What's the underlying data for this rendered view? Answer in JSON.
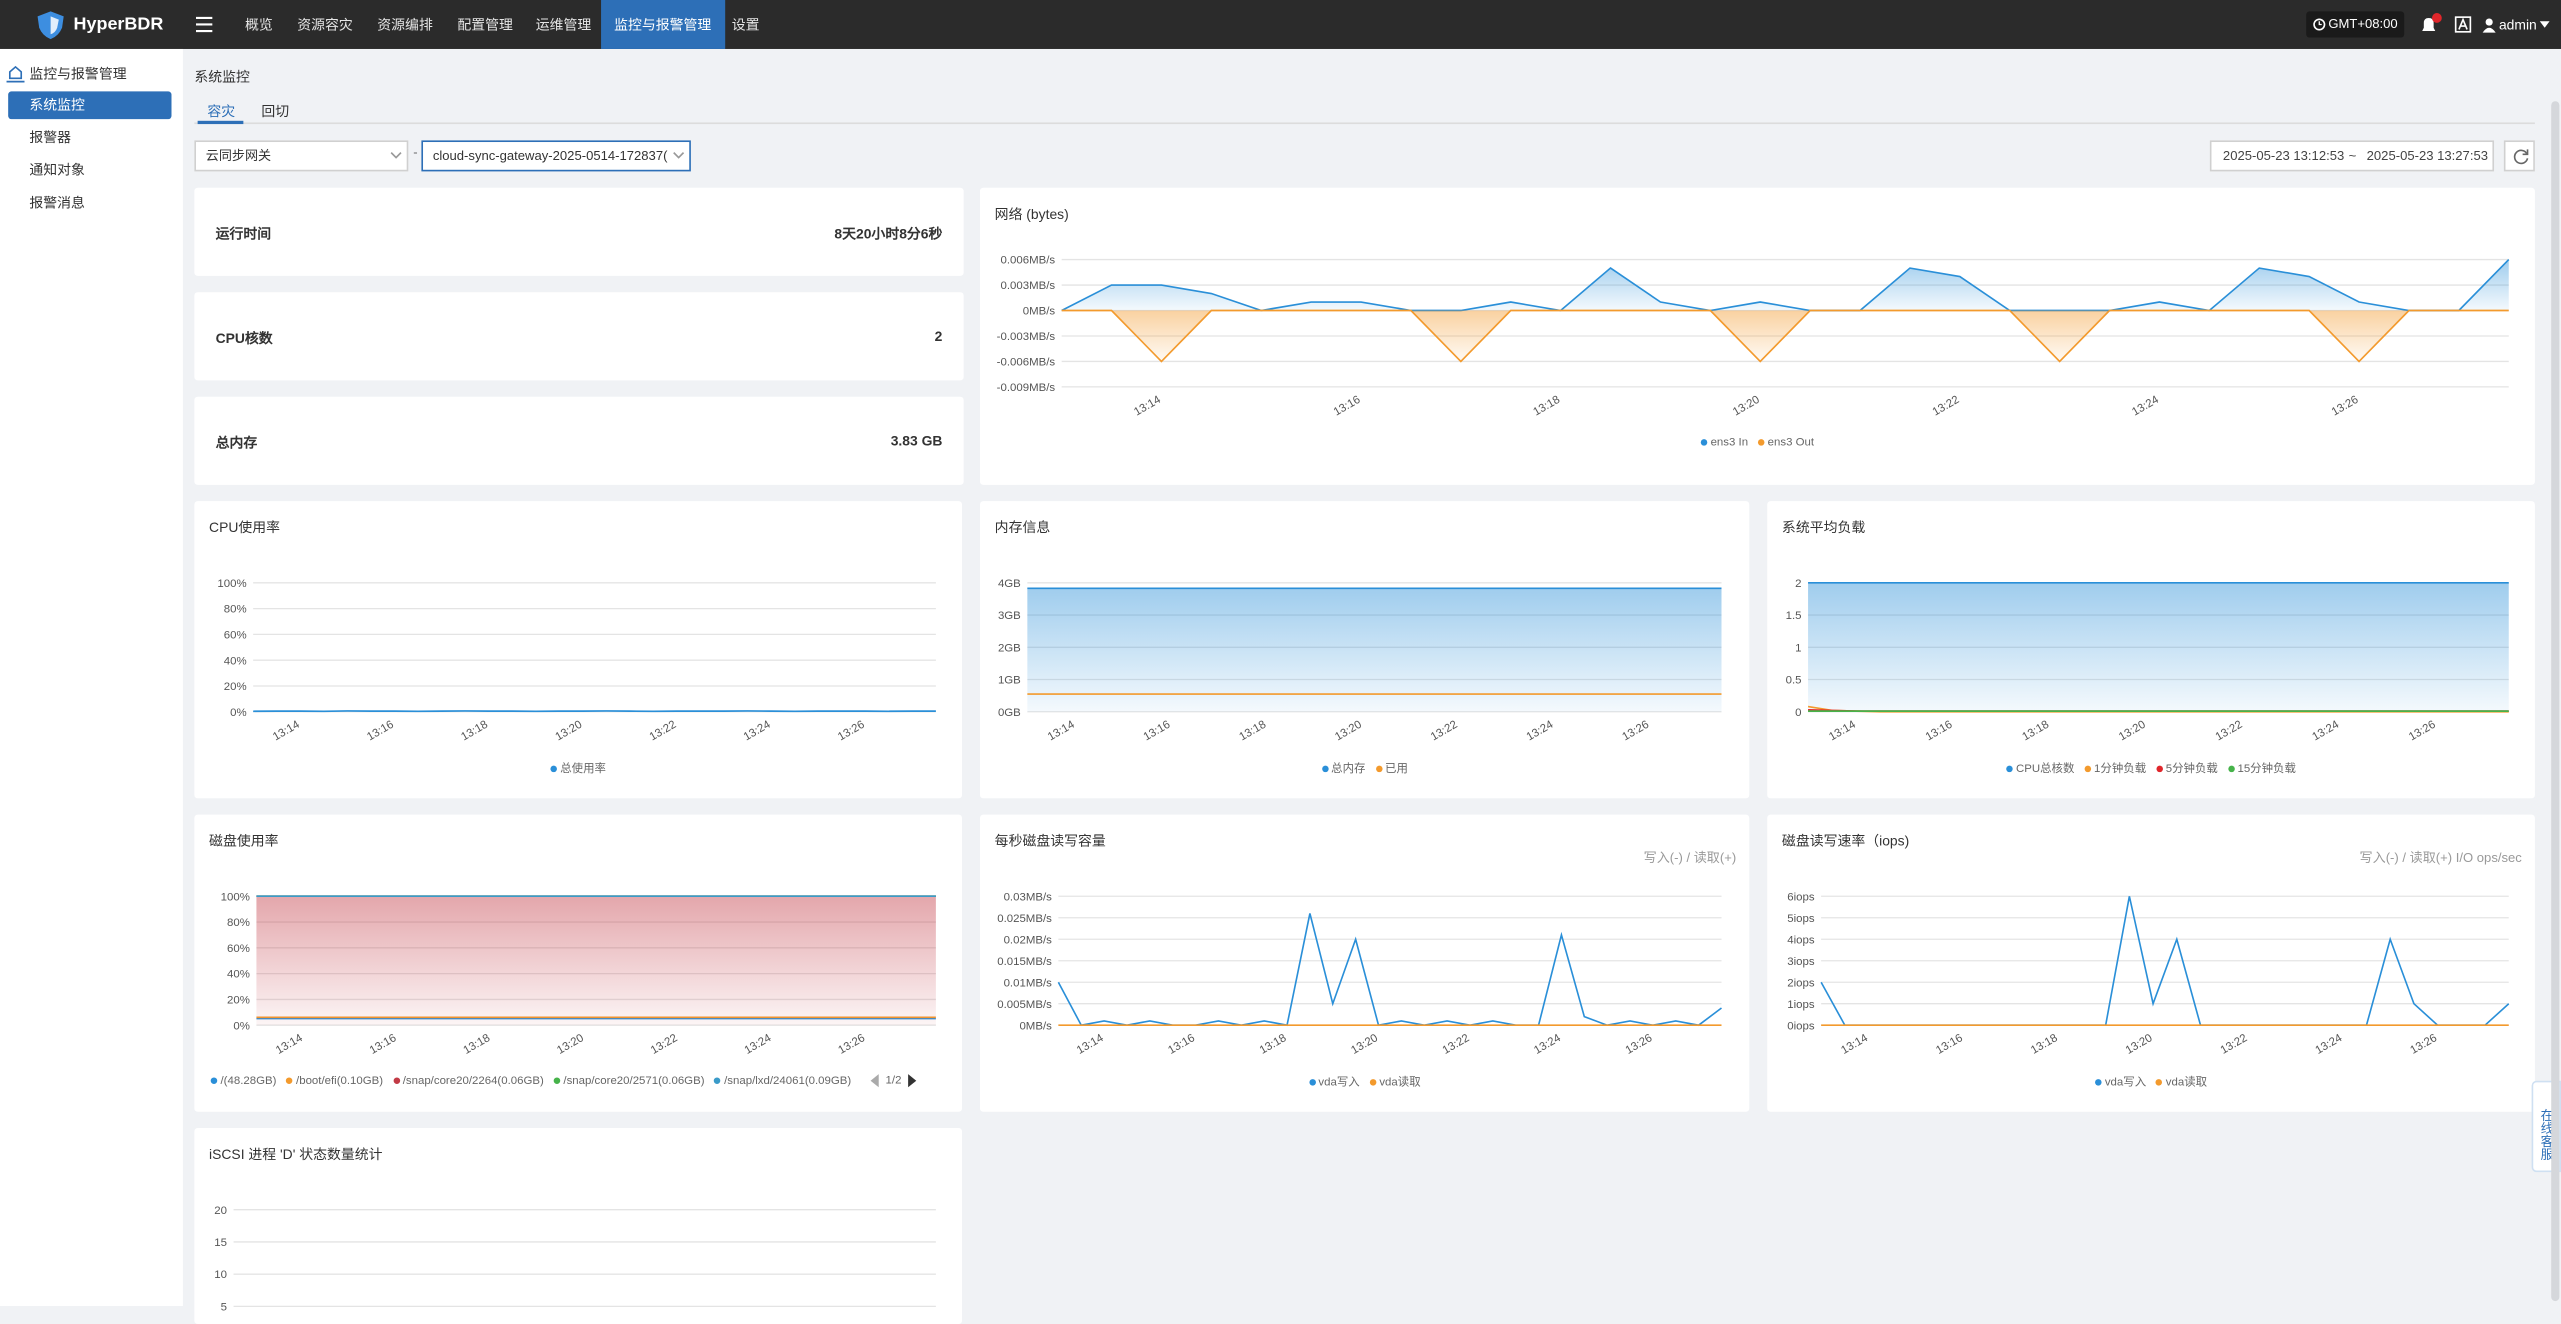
{
  "brand": "HyperBDR",
  "nav": [
    "概览",
    "资源容灾",
    "资源编排",
    "配置管理",
    "运维管理",
    "监控与报警管理",
    "设置"
  ],
  "nav_active": 5,
  "topbar": {
    "timezone": "GMT+08:00",
    "user": "admin"
  },
  "sidebar": {
    "group": "监控与报警管理",
    "items": [
      "系统监控",
      "报警器",
      "通知对象",
      "报警消息"
    ],
    "active": 0
  },
  "page": {
    "title": "系统监控",
    "tabs": [
      "容灾",
      "回切"
    ],
    "active_tab": 0,
    "filters": [
      "云同步网关",
      "cloud-sync-gateway-2025-0514-172837("
    ],
    "date_range": [
      "2025-05-23 13:12:53",
      "~",
      "2025-05-23 13:27:53"
    ]
  },
  "stats": [
    {
      "label": "运行时间",
      "value": "8天20小时8分6秒"
    },
    {
      "label": "CPU核数",
      "value": "2"
    },
    {
      "label": "总内存",
      "value": "3.83 GB"
    }
  ],
  "support": "在线客服",
  "chart_data": [
    {
      "type": "line",
      "title": "网络 (bytes)",
      "categories": [
        null,
        null,
        "13:14",
        null,
        null,
        null,
        "13:16",
        null,
        null,
        null,
        "13:18",
        null,
        null,
        null,
        "13:20",
        null,
        null,
        null,
        "13:22",
        null,
        null,
        null,
        "13:24",
        null,
        null,
        null,
        "13:26",
        null,
        null,
        null
      ],
      "ylim": [
        -0.009,
        0.006
      ],
      "yticks": [
        {
          "value": -0.009,
          "label": "-0.009MB/s"
        },
        {
          "value": -0.006,
          "label": "-0.006MB/s"
        },
        {
          "value": -0.003,
          "label": "-0.003MB/s"
        },
        {
          "value": 0,
          "label": "0MB/s"
        },
        {
          "value": 0.003,
          "label": "0.003MB/s"
        },
        {
          "value": 0.006,
          "label": "0.006MB/s"
        }
      ],
      "series": [
        {
          "name": "ens3 In",
          "color": "#2a8fd8",
          "area": true,
          "values": [
            0,
            0.003,
            0.003,
            0.002,
            0,
            0.001,
            0.001,
            0,
            0,
            0.001,
            0,
            0.005,
            0.001,
            0,
            0.001,
            0,
            0,
            0.005,
            0.004,
            0,
            0,
            0,
            0.001,
            0,
            0.005,
            0.004,
            0.001,
            0,
            0,
            0.006
          ]
        },
        {
          "name": "ens3 Out",
          "color": "#f39a2d",
          "area": true,
          "values": [
            0,
            0,
            -0.006,
            0,
            0,
            0,
            0,
            0,
            -0.006,
            0,
            0,
            0,
            0,
            0,
            -0.006,
            0,
            0,
            0,
            0,
            0,
            -0.006,
            0,
            0,
            0,
            0,
            0,
            -0.006,
            0,
            0,
            0
          ]
        }
      ]
    },
    {
      "type": "line",
      "title": "CPU使用率",
      "categories": [
        null,
        null,
        "13:14",
        null,
        null,
        null,
        "13:16",
        null,
        null,
        null,
        "13:18",
        null,
        null,
        null,
        "13:20",
        null,
        null,
        null,
        "13:22",
        null,
        null,
        null,
        "13:24",
        null,
        null,
        null,
        "13:26",
        null,
        null,
        null
      ],
      "ylim": [
        0,
        100
      ],
      "yticks": [
        {
          "value": 0,
          "label": "0%"
        },
        {
          "value": 20,
          "label": "20%"
        },
        {
          "value": 40,
          "label": "40%"
        },
        {
          "value": 60,
          "label": "60%"
        },
        {
          "value": 80,
          "label": "80%"
        },
        {
          "value": 100,
          "label": "100%"
        }
      ],
      "series": [
        {
          "name": "总使用率",
          "color": "#2a8fd8",
          "values": [
            0.4,
            0.5,
            0.5,
            0.4,
            0.6,
            0.5,
            0.5,
            0.4,
            0.5,
            0.6,
            0.5,
            0.5,
            0.4,
            0.5,
            0.5,
            0.6,
            0.5,
            0.4,
            0.5,
            0.5,
            0.5,
            0.6,
            0.5,
            0.4,
            0.5,
            0.5,
            0.5,
            0.4,
            0.5,
            0.5
          ]
        }
      ]
    },
    {
      "type": "line",
      "title": "内存信息",
      "categories": [
        null,
        null,
        "13:14",
        null,
        null,
        null,
        "13:16",
        null,
        null,
        null,
        "13:18",
        null,
        null,
        null,
        "13:20",
        null,
        null,
        null,
        "13:22",
        null,
        null,
        null,
        "13:24",
        null,
        null,
        null,
        "13:26",
        null,
        null,
        null
      ],
      "ylim": [
        0,
        4
      ],
      "yticks": [
        {
          "value": 0,
          "label": "0GB"
        },
        {
          "value": 1,
          "label": "1GB"
        },
        {
          "value": 2,
          "label": "2GB"
        },
        {
          "value": 3,
          "label": "3GB"
        },
        {
          "value": 4,
          "label": "4GB"
        }
      ],
      "series": [
        {
          "name": "总内存",
          "color": "#2a8fd8",
          "area": true,
          "values": [
            3.83,
            3.83,
            3.83,
            3.83,
            3.83,
            3.83,
            3.83,
            3.83,
            3.83,
            3.83,
            3.83,
            3.83,
            3.83,
            3.83,
            3.83,
            3.83,
            3.83,
            3.83,
            3.83,
            3.83,
            3.83,
            3.83,
            3.83,
            3.83,
            3.83,
            3.83,
            3.83,
            3.83,
            3.83,
            3.83
          ]
        },
        {
          "name": "已用",
          "color": "#f39a2d",
          "values": [
            0.55,
            0.55,
            0.55,
            0.55,
            0.55,
            0.55,
            0.55,
            0.55,
            0.55,
            0.55,
            0.55,
            0.55,
            0.55,
            0.55,
            0.55,
            0.55,
            0.55,
            0.55,
            0.55,
            0.55,
            0.55,
            0.55,
            0.55,
            0.55,
            0.55,
            0.55,
            0.55,
            0.55,
            0.55,
            0.55
          ]
        }
      ]
    },
    {
      "type": "line",
      "title": "系统平均负载",
      "categories": [
        null,
        null,
        "13:14",
        null,
        null,
        null,
        "13:16",
        null,
        null,
        null,
        "13:18",
        null,
        null,
        null,
        "13:20",
        null,
        null,
        null,
        "13:22",
        null,
        null,
        null,
        "13:24",
        null,
        null,
        null,
        "13:26",
        null,
        null,
        null
      ],
      "ylim": [
        0,
        2
      ],
      "yticks": [
        0,
        0.5,
        1,
        1.5,
        2
      ],
      "series": [
        {
          "name": "CPU总核数",
          "color": "#2a8fd8",
          "area": true,
          "values": [
            2,
            2,
            2,
            2,
            2,
            2,
            2,
            2,
            2,
            2,
            2,
            2,
            2,
            2,
            2,
            2,
            2,
            2,
            2,
            2,
            2,
            2,
            2,
            2,
            2,
            2,
            2,
            2,
            2,
            2
          ]
        },
        {
          "name": "1分钟负载",
          "color": "#f39a2d",
          "values": [
            0.08,
            0.02,
            0.01,
            0,
            0,
            0,
            0,
            0,
            0,
            0,
            0,
            0,
            0,
            0,
            0,
            0,
            0,
            0,
            0,
            0,
            0,
            0,
            0,
            0,
            0,
            0,
            0,
            0,
            0,
            0
          ]
        },
        {
          "name": "5分钟负载",
          "color": "#e0262b",
          "values": [
            0.03,
            0.02,
            0.01,
            0.01,
            0.01,
            0.01,
            0.01,
            0.01,
            0.01,
            0.01,
            0.01,
            0.01,
            0.01,
            0.01,
            0.01,
            0.01,
            0.01,
            0.01,
            0.01,
            0.01,
            0.01,
            0.01,
            0.01,
            0.01,
            0.01,
            0.01,
            0.01,
            0.01,
            0.01,
            0.01
          ]
        },
        {
          "name": "15分钟负载",
          "color": "#46b34a",
          "values": [
            0.01,
            0.01,
            0.01,
            0.01,
            0.01,
            0.01,
            0.01,
            0.01,
            0.01,
            0.01,
            0.01,
            0.01,
            0.01,
            0.01,
            0.01,
            0.01,
            0.01,
            0.01,
            0.01,
            0.01,
            0.01,
            0.01,
            0.01,
            0.01,
            0.01,
            0.01,
            0.01,
            0.01,
            0.01,
            0.01
          ]
        }
      ]
    },
    {
      "type": "line",
      "title": "磁盘使用率",
      "categories": [
        null,
        null,
        "13:14",
        null,
        null,
        null,
        "13:16",
        null,
        null,
        null,
        "13:18",
        null,
        null,
        null,
        "13:20",
        null,
        null,
        null,
        "13:22",
        null,
        null,
        null,
        "13:24",
        null,
        null,
        null,
        "13:26",
        null,
        null,
        null
      ],
      "ylim": [
        0,
        100
      ],
      "yticks": [
        {
          "value": 0,
          "label": "0%"
        },
        {
          "value": 20,
          "label": "20%"
        },
        {
          "value": 40,
          "label": "40%"
        },
        {
          "value": 60,
          "label": "60%"
        },
        {
          "value": 80,
          "label": "80%"
        },
        {
          "value": 100,
          "label": "100%"
        }
      ],
      "legend_page": "1/2",
      "series": [
        {
          "name": "/(48.28GB)",
          "color": "#2a8fd8",
          "values": [
            5.2,
            5.2,
            5.2,
            5.2,
            5.2,
            5.2,
            5.2,
            5.2,
            5.2,
            5.2,
            5.2,
            5.2,
            5.2,
            5.2,
            5.2,
            5.2,
            5.2,
            5.2,
            5.2,
            5.2,
            5.2,
            5.2,
            5.2,
            5.2,
            5.2,
            5.2,
            5.2,
            5.2,
            5.2,
            5.2
          ]
        },
        {
          "name": "/boot/efi(0.10GB)",
          "color": "#f39a2d",
          "values": [
            6.1,
            6.1,
            6.1,
            6.1,
            6.1,
            6.1,
            6.1,
            6.1,
            6.1,
            6.1,
            6.1,
            6.1,
            6.1,
            6.1,
            6.1,
            6.1,
            6.1,
            6.1,
            6.1,
            6.1,
            6.1,
            6.1,
            6.1,
            6.1,
            6.1,
            6.1,
            6.1,
            6.1,
            6.1,
            6.1
          ]
        },
        {
          "name": "/snap/core20/2264(0.06GB)",
          "color": "#c23a45",
          "area": true,
          "values": [
            100,
            100,
            100,
            100,
            100,
            100,
            100,
            100,
            100,
            100,
            100,
            100,
            100,
            100,
            100,
            100,
            100,
            100,
            100,
            100,
            100,
            100,
            100,
            100,
            100,
            100,
            100,
            100,
            100,
            100
          ]
        },
        {
          "name": "/snap/core20/2571(0.06GB)",
          "color": "#46b34a",
          "values": [
            100,
            100,
            100,
            100,
            100,
            100,
            100,
            100,
            100,
            100,
            100,
            100,
            100,
            100,
            100,
            100,
            100,
            100,
            100,
            100,
            100,
            100,
            100,
            100,
            100,
            100,
            100,
            100,
            100,
            100
          ]
        },
        {
          "name": "/snap/lxd/24061(0.09GB)",
          "color": "#3a9bc9",
          "values": [
            100,
            100,
            100,
            100,
            100,
            100,
            100,
            100,
            100,
            100,
            100,
            100,
            100,
            100,
            100,
            100,
            100,
            100,
            100,
            100,
            100,
            100,
            100,
            100,
            100,
            100,
            100,
            100,
            100,
            100
          ]
        }
      ]
    },
    {
      "type": "line",
      "title": "每秒磁盘读写容量",
      "note": "写入(-) / 读取(+)",
      "categories": [
        null,
        null,
        "13:14",
        null,
        null,
        null,
        "13:16",
        null,
        null,
        null,
        "13:18",
        null,
        null,
        null,
        "13:20",
        null,
        null,
        null,
        "13:22",
        null,
        null,
        null,
        "13:24",
        null,
        null,
        null,
        "13:26",
        null,
        null,
        null
      ],
      "ylim": [
        0,
        0.03
      ],
      "yticks": [
        {
          "value": 0,
          "label": "0MB/s"
        },
        {
          "value": 0.005,
          "label": "0.005MB/s"
        },
        {
          "value": 0.01,
          "label": "0.01MB/s"
        },
        {
          "value": 0.015,
          "label": "0.015MB/s"
        },
        {
          "value": 0.02,
          "label": "0.02MB/s"
        },
        {
          "value": 0.025,
          "label": "0.025MB/s"
        },
        {
          "value": 0.03,
          "label": "0.03MB/s"
        }
      ],
      "series": [
        {
          "name": "vda写入",
          "color": "#2a8fd8",
          "values": [
            0.01,
            0,
            0.001,
            0,
            0.001,
            0,
            0,
            0.001,
            0,
            0.001,
            0,
            0.026,
            0.005,
            0.02,
            0,
            0.001,
            0,
            0.001,
            0,
            0.001,
            0,
            0,
            0.021,
            0.002,
            0,
            0.001,
            0,
            0.001,
            0,
            0.004
          ]
        },
        {
          "name": "vda读取",
          "color": "#f39a2d",
          "values": [
            0,
            0,
            0,
            0,
            0,
            0,
            0,
            0,
            0,
            0,
            0,
            0,
            0,
            0,
            0,
            0,
            0,
            0,
            0,
            0,
            0,
            0,
            0,
            0,
            0,
            0,
            0,
            0,
            0,
            0
          ]
        }
      ]
    },
    {
      "type": "line",
      "title": "磁盘读写速率（iops)",
      "note": "写入(-) / 读取(+) I/O ops/sec",
      "categories": [
        null,
        null,
        "13:14",
        null,
        null,
        null,
        "13:16",
        null,
        null,
        null,
        "13:18",
        null,
        null,
        null,
        "13:20",
        null,
        null,
        null,
        "13:22",
        null,
        null,
        null,
        "13:24",
        null,
        null,
        null,
        "13:26",
        null,
        null,
        null
      ],
      "ylim": [
        0,
        6
      ],
      "yticks": [
        {
          "value": 0,
          "label": "0iops"
        },
        {
          "value": 1,
          "label": "1iops"
        },
        {
          "value": 2,
          "label": "2iops"
        },
        {
          "value": 3,
          "label": "3iops"
        },
        {
          "value": 4,
          "label": "4iops"
        },
        {
          "value": 5,
          "label": "5iops"
        },
        {
          "value": 6,
          "label": "6iops"
        }
      ],
      "series": [
        {
          "name": "vda写入",
          "color": "#2a8fd8",
          "values": [
            2,
            0,
            0,
            0,
            0,
            0,
            0,
            0,
            0,
            0,
            0,
            0,
            0,
            6,
            1,
            4,
            0,
            0,
            0,
            0,
            0,
            0,
            0,
            0,
            4,
            1,
            0,
            0,
            0,
            1
          ]
        },
        {
          "name": "vda读取",
          "color": "#f39a2d",
          "values": [
            0,
            0,
            0,
            0,
            0,
            0,
            0,
            0,
            0,
            0,
            0,
            0,
            0,
            0,
            0,
            0,
            0,
            0,
            0,
            0,
            0,
            0,
            0,
            0,
            0,
            0,
            0,
            0,
            0,
            0
          ]
        }
      ]
    },
    {
      "type": "line",
      "title": "iSCSI 进程 'D' 状态数量统计",
      "ylim": [
        0,
        20
      ],
      "yticks": [
        5,
        10,
        15,
        20
      ]
    }
  ]
}
